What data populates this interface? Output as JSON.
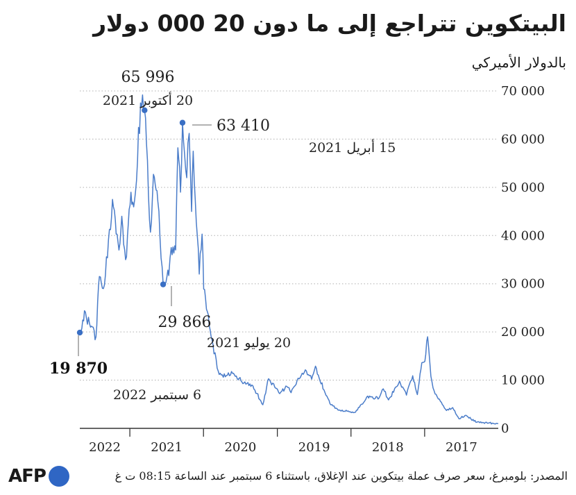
{
  "title": "البيتكوين تتراجع إلى ما دون 20 000 دولار",
  "subtitle": "بالدولار الأميركي",
  "source": "المصدر: بلومبرغ، سعر صرف عملة بيتكوين عند الإغلاق، باستثناء 6 سبتمبر عند الساعة 08:15 ت غ",
  "logo": "AFP",
  "colors": {
    "line": "#4a7cc9",
    "point": "#3a6fc4",
    "grid": "#bfbfbf",
    "logo_dot": "#2f66c4"
  },
  "chart_data": {
    "type": "line",
    "x_direction": "right-to-left",
    "title": "البيتكوين تتراجع إلى ما دون 20 000 دولار",
    "ylabel": "بالدولار الأميركي",
    "ylim": [
      0,
      70000
    ],
    "yticks": [
      0,
      10000,
      20000,
      30000,
      40000,
      50000,
      60000,
      70000
    ],
    "ytick_labels": [
      "0",
      "10 000",
      "20 000",
      "30 000",
      "40 000",
      "50 000",
      "60 000",
      "70 000"
    ],
    "x_years": [
      "2017",
      "2018",
      "2019",
      "2020",
      "2021",
      "2022"
    ],
    "grid": "horizontal-dotted",
    "series": [
      {
        "values": [
          [
            "2017-01-01",
            1000
          ],
          [
            "2017-03-15",
            1200
          ],
          [
            "2017-05-01",
            1500
          ],
          [
            "2017-06-10",
            2700
          ],
          [
            "2017-07-15",
            2000
          ],
          [
            "2017-08-15",
            4300
          ],
          [
            "2017-09-15",
            3700
          ],
          [
            "2017-10-15",
            5600
          ],
          [
            "2017-11-15",
            7800
          ],
          [
            "2017-12-01",
            10800
          ],
          [
            "2017-12-17",
            19000
          ],
          [
            "2017-12-31",
            13900
          ],
          [
            "2018-01-15",
            13600
          ],
          [
            "2018-02-06",
            7000
          ],
          [
            "2018-03-01",
            10900
          ],
          [
            "2018-04-01",
            6900
          ],
          [
            "2018-05-05",
            9800
          ],
          [
            "2018-06-29",
            5900
          ],
          [
            "2018-07-25",
            8200
          ],
          [
            "2018-08-15",
            6300
          ],
          [
            "2018-10-15",
            6500
          ],
          [
            "2018-11-20",
            4400
          ],
          [
            "2018-12-15",
            3300
          ],
          [
            "2019-01-15",
            3600
          ],
          [
            "2019-03-01",
            3800
          ],
          [
            "2019-04-15",
            5100
          ],
          [
            "2019-05-15",
            8000
          ],
          [
            "2019-06-26",
            12900
          ],
          [
            "2019-07-15",
            10200
          ],
          [
            "2019-08-10",
            11900
          ],
          [
            "2019-09-15",
            10300
          ],
          [
            "2019-10-25",
            7400
          ],
          [
            "2019-11-15",
            8700
          ],
          [
            "2019-12-20",
            7200
          ],
          [
            "2020-02-13",
            10300
          ],
          [
            "2020-03-13",
            4900
          ],
          [
            "2020-05-01",
            8800
          ],
          [
            "2020-06-15",
            9400
          ],
          [
            "2020-08-15",
            11800
          ],
          [
            "2020-09-15",
            10700
          ],
          [
            "2020-10-20",
            11900
          ],
          [
            "2020-11-20",
            18400
          ],
          [
            "2020-12-31",
            28900
          ],
          [
            "2021-01-08",
            40300
          ],
          [
            "2021-01-22",
            32000
          ],
          [
            "2021-02-21",
            57500
          ],
          [
            "2021-03-01",
            45000
          ],
          [
            "2021-03-13",
            61200
          ],
          [
            "2021-03-25",
            52000
          ],
          [
            "2021-04-15",
            63410
          ],
          [
            "2021-04-25",
            49000
          ],
          [
            "2021-05-08",
            58200
          ],
          [
            "2021-05-19",
            37000
          ],
          [
            "2021-06-10",
            37500
          ],
          [
            "2021-06-22",
            31700
          ],
          [
            "2021-07-20",
            29866
          ],
          [
            "2021-08-15",
            47000
          ],
          [
            "2021-09-06",
            52700
          ],
          [
            "2021-09-21",
            40700
          ],
          [
            "2021-10-20",
            65996
          ],
          [
            "2021-11-09",
            67500
          ],
          [
            "2021-12-04",
            49000
          ],
          [
            "2021-12-31",
            46300
          ],
          [
            "2022-01-22",
            35000
          ],
          [
            "2022-02-10",
            44000
          ],
          [
            "2022-02-24",
            37000
          ],
          [
            "2022-03-28",
            47500
          ],
          [
            "2022-05-12",
            29000
          ],
          [
            "2022-06-01",
            31500
          ],
          [
            "2022-06-18",
            19000
          ],
          [
            "2022-07-15",
            21000
          ],
          [
            "2022-08-14",
            24400
          ],
          [
            "2022-08-31",
            20000
          ],
          [
            "2022-09-06",
            19870
          ]
        ]
      }
    ],
    "annotations": [
      {
        "date": "2021-10-20",
        "value": 65996,
        "value_label": "65 996",
        "date_label": "20 أكتوبر 2021"
      },
      {
        "date": "2021-04-15",
        "value": 63410,
        "value_label": "63 410",
        "date_label": "15 أبريل 2021"
      },
      {
        "date": "2021-07-20",
        "value": 29866,
        "value_label": "29 866",
        "date_label": "20 يوليو 2021"
      },
      {
        "date": "2022-09-06",
        "value": 19870,
        "value_label": "19 870",
        "date_label": "6 سبتمبر 2022"
      }
    ]
  }
}
